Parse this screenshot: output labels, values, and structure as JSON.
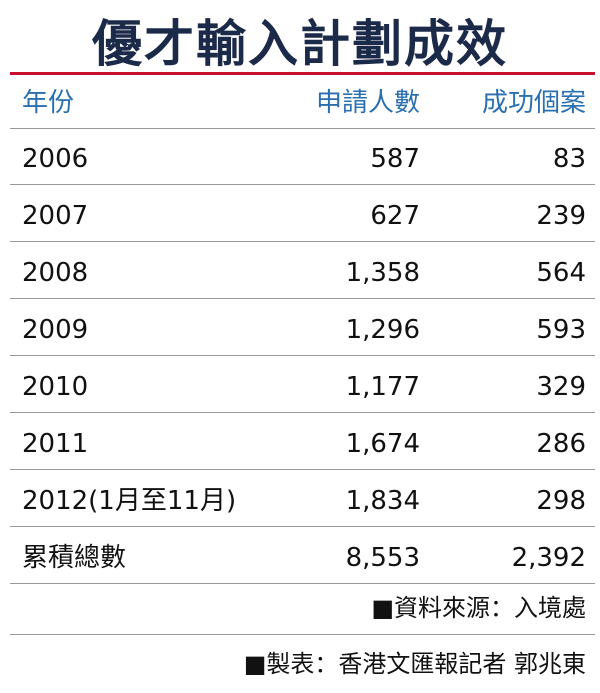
{
  "header": {
    "title": "優才輸入計劃成效"
  },
  "table": {
    "columns": [
      "年份",
      "申請人數",
      "成功個案"
    ],
    "rows": [
      [
        "2006",
        "587",
        "83"
      ],
      [
        "2007",
        "627",
        "239"
      ],
      [
        "2008",
        "1,358",
        "564"
      ],
      [
        "2009",
        "1,296",
        "593"
      ],
      [
        "2010",
        "1,177",
        "329"
      ],
      [
        "2011",
        "1,674",
        "286"
      ],
      [
        "2012(1月至11月)",
        "1,834",
        "298"
      ],
      [
        "累積總數",
        "8,553",
        "2,392"
      ]
    ]
  },
  "footer": {
    "source": "■資料來源：入境處",
    "credit": "■製表：香港文匯報記者 郭兆東"
  }
}
